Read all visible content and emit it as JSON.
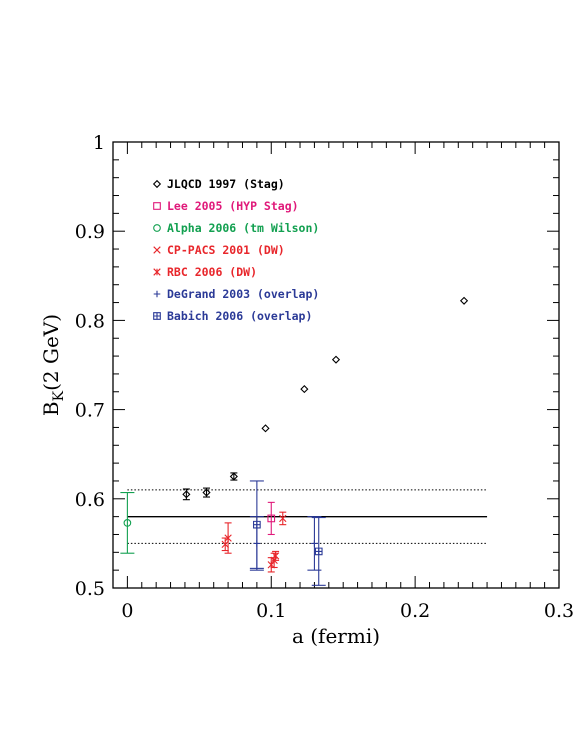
{
  "chart_data": {
    "type": "scatter",
    "xlabel": "a (fermi)",
    "ylabel_main": "B",
    "ylabel_sub": "K",
    "ylabel_rest": "(2 GeV)",
    "xlim": [
      -0.01,
      0.3
    ],
    "ylim": [
      0.5,
      1.0
    ],
    "x_ticks": [
      {
        "value": 0,
        "label": "0"
      },
      {
        "value": 0.1,
        "label": "0.1"
      },
      {
        "value": 0.2,
        "label": "0.2"
      },
      {
        "value": 0.3,
        "label": "0.3"
      }
    ],
    "y_ticks": [
      {
        "value": 0.5,
        "label": "0.5"
      },
      {
        "value": 0.6,
        "label": "0.6"
      },
      {
        "value": 0.7,
        "label": "0.7"
      },
      {
        "value": 0.8,
        "label": "0.8"
      },
      {
        "value": 0.9,
        "label": "0.9"
      },
      {
        "value": 1.0,
        "label": "1"
      }
    ],
    "grid": false,
    "legend_position": "top-left",
    "reference_lines": [
      {
        "y": 0.58,
        "style": "solid"
      },
      {
        "y": 0.61,
        "style": "dotted"
      },
      {
        "y": 0.55,
        "style": "dotted"
      }
    ],
    "reference_line_x_range": [
      0,
      0.25
    ],
    "series": [
      {
        "name": "JLQCD 1997 (Stag)",
        "marker": "diamond",
        "color": "#000000",
        "points": [
          {
            "x": 0.041,
            "y": 0.605,
            "err": 0.006
          },
          {
            "x": 0.055,
            "y": 0.607,
            "err": 0.005
          },
          {
            "x": 0.074,
            "y": 0.625,
            "err": 0.004
          },
          {
            "x": 0.096,
            "y": 0.679,
            "err": 0.0
          },
          {
            "x": 0.123,
            "y": 0.723,
            "err": 0.0
          },
          {
            "x": 0.145,
            "y": 0.756,
            "err": 0.0
          },
          {
            "x": 0.234,
            "y": 0.822,
            "err": 0.0
          }
        ]
      },
      {
        "name": "Lee 2005 (HYP Stag)",
        "marker": "square",
        "color": "#e0197a",
        "points": [
          {
            "x": 0.1,
            "y": 0.578,
            "err": 0.018
          }
        ]
      },
      {
        "name": "Alpha 2006 (tm Wilson)",
        "marker": "circle",
        "color": "#12a050",
        "points": [
          {
            "x": 0.0,
            "y": 0.573,
            "err": 0.034
          }
        ]
      },
      {
        "name": "CP-PACS 2001 (DW)",
        "marker": "x",
        "color": "#e8262b",
        "points": [
          {
            "x": 0.068,
            "y": 0.549,
            "err": 0.007
          },
          {
            "x": 0.102,
            "y": 0.531,
            "err": 0.008
          },
          {
            "x": 0.108,
            "y": 0.578,
            "err": 0.007
          }
        ]
      },
      {
        "name": "RBC 2006 (DW)",
        "marker": "star",
        "color": "#e8262b",
        "points": [
          {
            "x": 0.07,
            "y": 0.556,
            "err": 0.017
          },
          {
            "x": 0.1,
            "y": 0.526,
            "err": 0.008
          },
          {
            "x": 0.103,
            "y": 0.536,
            "err": 0.005
          }
        ]
      },
      {
        "name": "DeGrand 2003 (overlap)",
        "marker": "plus",
        "color": "#2b3a97",
        "points": [
          {
            "x": 0.09,
            "y": 0.55,
            "err": 0.03
          },
          {
            "x": 0.13,
            "y": 0.55,
            "err": 0.03
          }
        ]
      },
      {
        "name": "Babich 2006 (overlap)",
        "marker": "boxplus",
        "color": "#2b3a97",
        "points": [
          {
            "x": 0.09,
            "y": 0.571,
            "err": 0.049
          },
          {
            "x": 0.133,
            "y": 0.541,
            "err": 0.038
          }
        ]
      }
    ]
  }
}
